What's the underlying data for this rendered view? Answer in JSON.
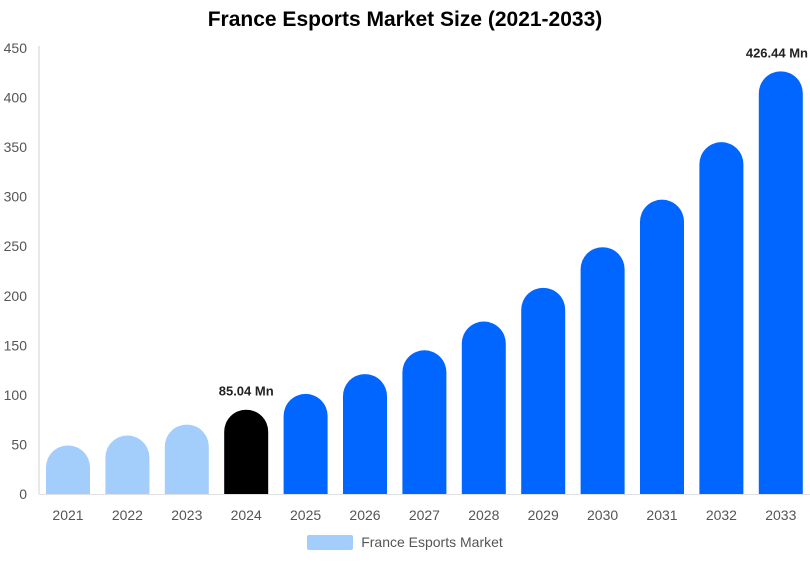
{
  "chart_data": {
    "type": "bar",
    "title": "France Esports Market Size (2021-2033)",
    "xlabel": "",
    "ylabel": "",
    "categories": [
      "2021",
      "2022",
      "2023",
      "2024",
      "2025",
      "2026",
      "2027",
      "2028",
      "2029",
      "2030",
      "2031",
      "2032",
      "2033"
    ],
    "series": [
      {
        "name": "France Esports Market",
        "values": [
          49,
          59,
          70,
          85.04,
          101,
          121,
          145,
          174,
          208,
          249,
          297,
          355,
          426.44
        ]
      }
    ],
    "ylim": [
      0,
      450
    ],
    "yticks": [
      0,
      50,
      100,
      150,
      200,
      250,
      300,
      350,
      400,
      450
    ],
    "data_labels": [
      {
        "category": "2024",
        "text": "85.04 Mn"
      },
      {
        "category": "2033",
        "text": "426.44 Mn"
      }
    ],
    "bar_colors": {
      "historical": "#a3cdfa",
      "base_year": "#000000",
      "forecast": "#0066ff"
    },
    "base_year": "2024",
    "legend": {
      "position": "bottom",
      "swatch_color": "#a3cdfa"
    },
    "grid": false
  }
}
